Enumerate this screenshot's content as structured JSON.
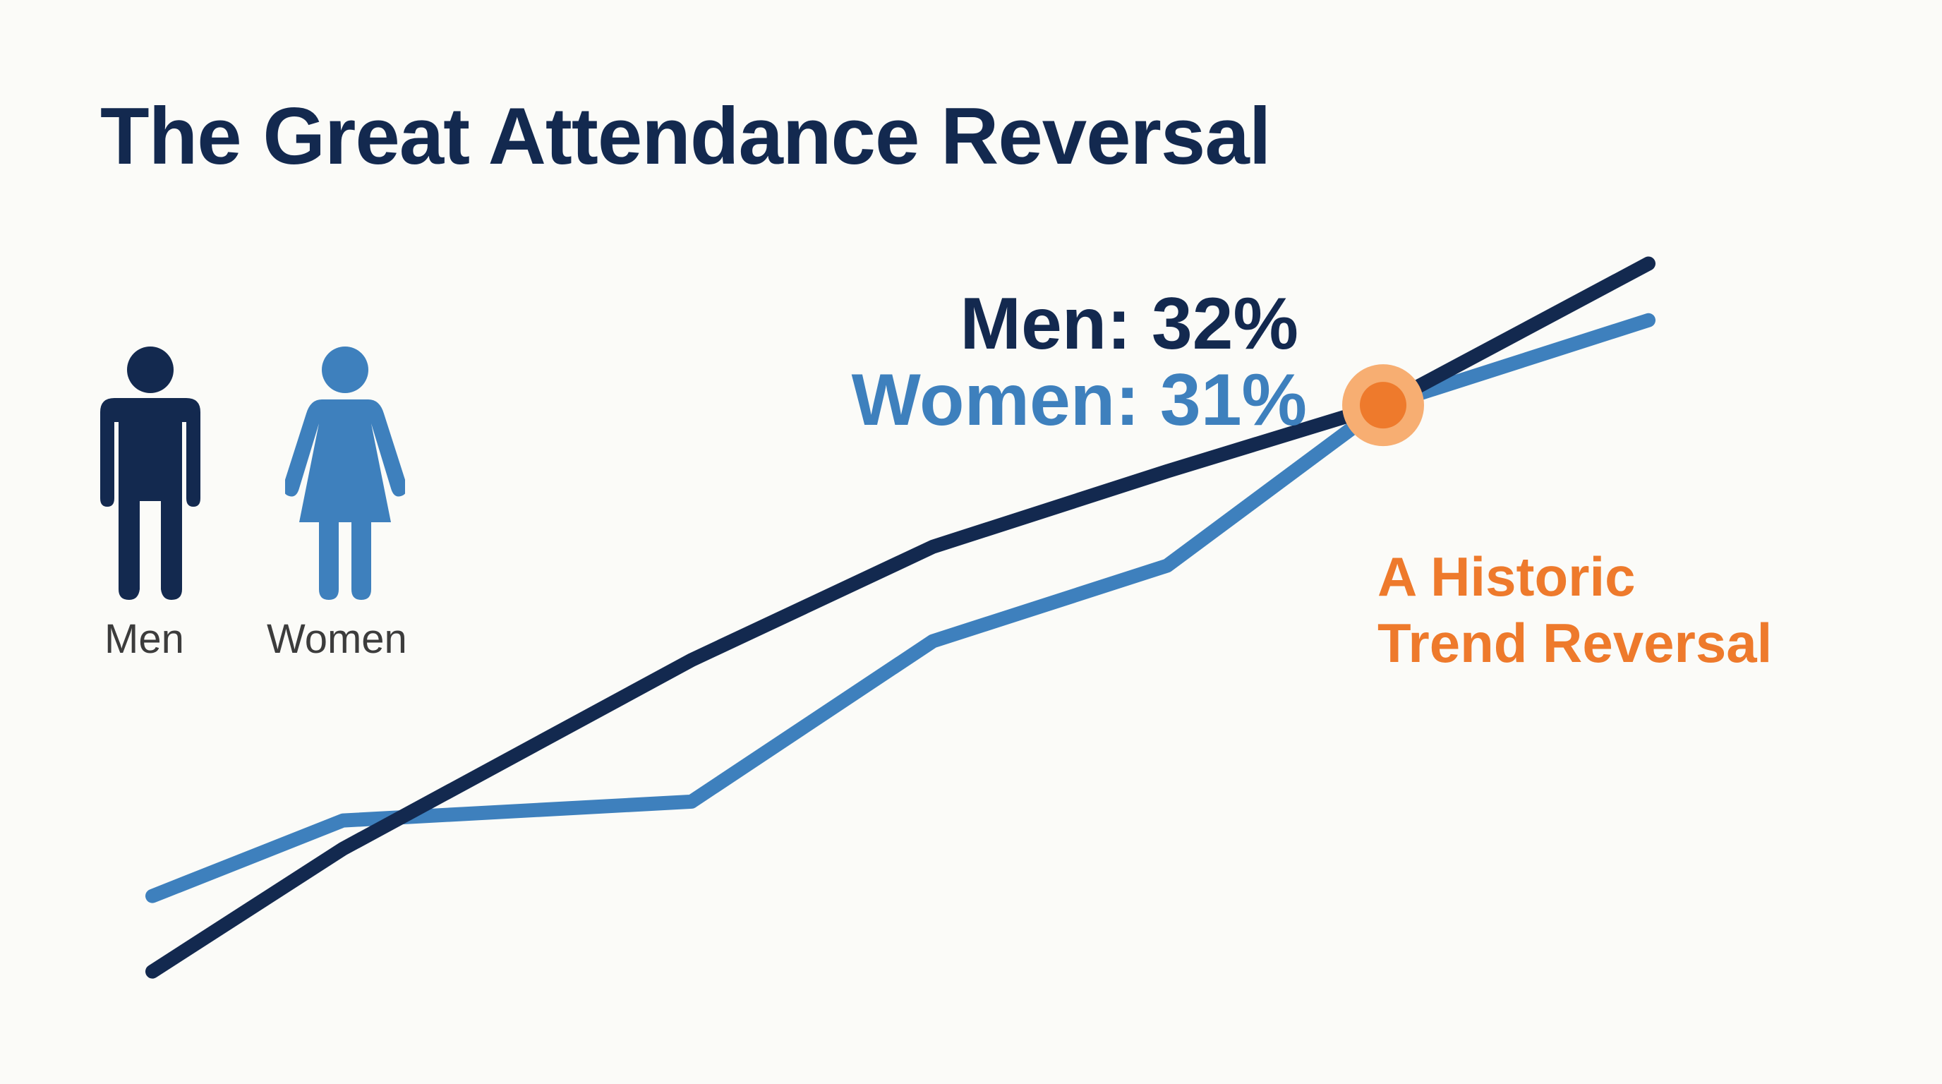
{
  "title": "The Great Attendance Reversal",
  "legend": {
    "men_label": "Men",
    "women_label": "Women",
    "men_icon": "man-icon",
    "women_icon": "woman-icon"
  },
  "callouts": {
    "men": "Men: 32%",
    "women": "Women: 31%"
  },
  "annotation": {
    "line1": "A Historic",
    "line2": "Trend Reversal"
  },
  "colors": {
    "men": "#13294f",
    "women": "#3e80bd",
    "highlight": "#ee7a2c",
    "highlight_ring": "#f7ae72"
  },
  "chart_data": {
    "type": "line",
    "title": "The Great Attendance Reversal",
    "xlabel": "",
    "ylabel": "",
    "axes_visible": false,
    "grid": false,
    "ylim": [
      0,
      40
    ],
    "x": [
      1,
      2,
      3,
      4,
      5,
      6,
      7
    ],
    "series": [
      {
        "name": "Men",
        "values": [
          0.5,
          7,
          17,
          23,
          27,
          30.5,
          38
        ]
      },
      {
        "name": "Women",
        "values": [
          4.5,
          8.5,
          9.5,
          18,
          22,
          30.5,
          35
        ]
      }
    ],
    "highlight_point": {
      "x": 6,
      "y": 30.5,
      "label": "A Historic Trend Reversal"
    }
  }
}
